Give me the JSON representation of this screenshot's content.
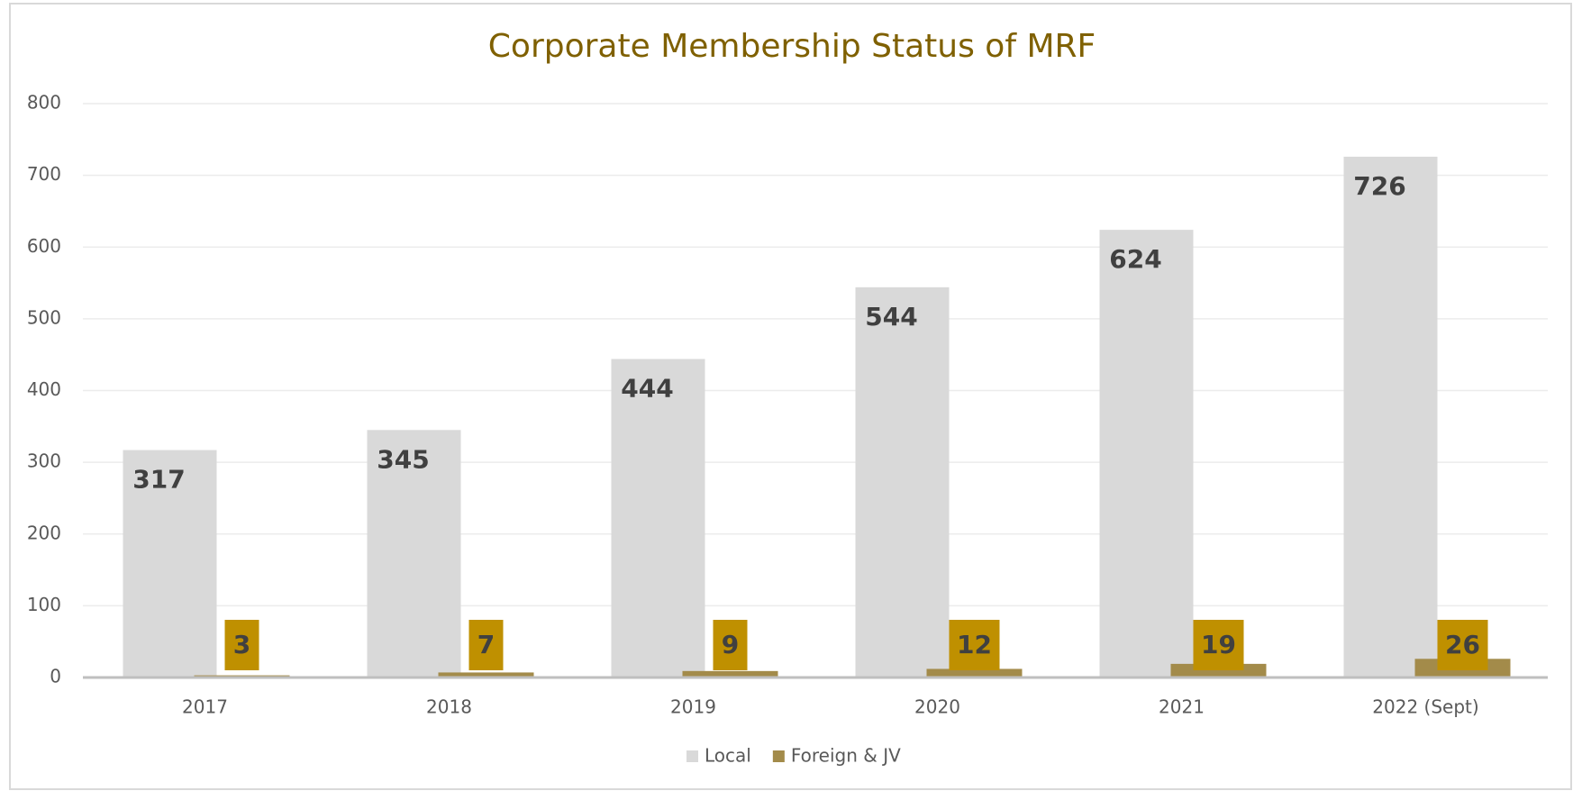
{
  "chart_data": {
    "type": "bar",
    "title": "Corporate Membership Status of MRF",
    "categories": [
      "2017",
      "2018",
      "2019",
      "2020",
      "2021",
      "2022 (Sept)"
    ],
    "series": [
      {
        "name": "Local",
        "color": "#d9d9d9",
        "values": [
          317,
          345,
          444,
          544,
          624,
          726
        ]
      },
      {
        "name": "Foreign & JV",
        "color": "#a38b4a",
        "values": [
          3,
          7,
          9,
          12,
          19,
          26
        ]
      }
    ],
    "ylim": [
      0,
      800
    ],
    "yticks": [
      0,
      100,
      200,
      300,
      400,
      500,
      600,
      700,
      800
    ],
    "grid": true,
    "legend": "bottom"
  }
}
